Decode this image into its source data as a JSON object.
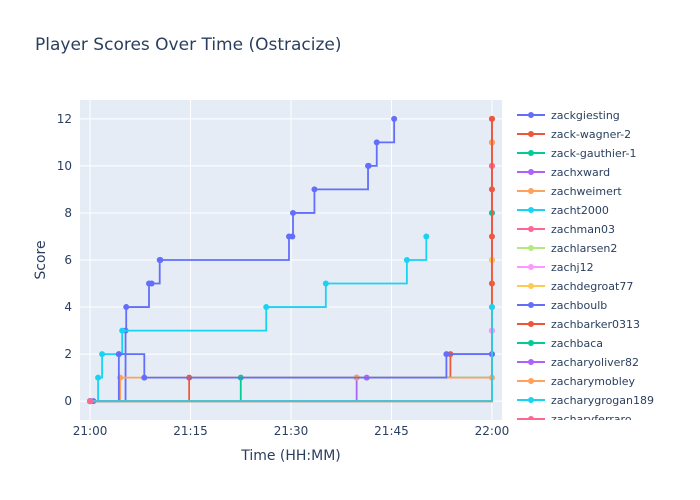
{
  "chart_data": {
    "type": "line",
    "line_shape": "step",
    "title": "Player Scores Over Time (Ostracize)",
    "xlabel": "Time (HH:MM)",
    "ylabel": "Score",
    "x_ticks": [
      "21:00",
      "21:15",
      "21:30",
      "21:45",
      "22:00"
    ],
    "x_tick_minutes": [
      0,
      15,
      30,
      45,
      60
    ],
    "xlim_minutes": [
      -1.5,
      61.5
    ],
    "ylim": [
      -0.8,
      12.8
    ],
    "y_ticks": [
      0,
      2,
      4,
      6,
      8,
      10,
      12
    ],
    "grid": true,
    "legend_position": "right",
    "series": [
      {
        "name": "zackgiesting",
        "color": "#636efa",
        "x": [
          0,
          0.5,
          5.3,
          5.4,
          8.8,
          9.2,
          10.4,
          10.5,
          29.7,
          30.2,
          30.3,
          33.5,
          41.5,
          41.6,
          42.8,
          45.4
        ],
        "y": [
          0,
          0,
          3,
          4,
          5,
          5,
          6,
          6,
          7,
          7,
          8,
          9,
          10,
          10,
          11,
          12
        ]
      },
      {
        "name": "zack-wagner-2",
        "color": "#ef553b",
        "x": [
          0,
          14.8,
          53.8,
          60,
          60,
          60,
          60,
          60,
          60,
          60,
          60,
          60,
          60,
          60
        ],
        "y": [
          0,
          1,
          2,
          2,
          3,
          4,
          5,
          6,
          7,
          8,
          9,
          10,
          11,
          12
        ]
      },
      {
        "name": "zack-gauthier-1",
        "color": "#00cc96",
        "x": [
          0,
          22.5,
          60
        ],
        "y": [
          0,
          1,
          8
        ]
      },
      {
        "name": "zachxward",
        "color": "#ab63fa",
        "x": [
          0,
          39.8,
          41.3
        ],
        "y": [
          0,
          1,
          1
        ]
      },
      {
        "name": "zachweimert",
        "color": "#ffa15a",
        "x": [
          0,
          4.5,
          39.8,
          60
        ],
        "y": [
          0,
          1,
          1,
          11
        ]
      },
      {
        "name": "zacht2000",
        "color": "#19d3f3",
        "x": [
          0,
          1.2,
          1.8,
          4.3,
          4.8,
          26.3,
          35.2,
          47.3,
          50.2
        ],
        "y": [
          0,
          1,
          2,
          2,
          3,
          4,
          5,
          6,
          7
        ]
      },
      {
        "name": "zachman03",
        "color": "#ff6692",
        "x": [
          0,
          60
        ],
        "y": [
          0,
          10
        ]
      },
      {
        "name": "zachlarsen2",
        "color": "#b6e880",
        "x": [
          0
        ],
        "y": [
          0
        ]
      },
      {
        "name": "zachj12",
        "color": "#ff97ff",
        "x": [
          0,
          60
        ],
        "y": [
          0,
          3
        ]
      },
      {
        "name": "zachdegroat77",
        "color": "#fecb52",
        "x": [
          0,
          60
        ],
        "y": [
          0,
          6
        ]
      },
      {
        "name": "zachboulb",
        "color": "#636efa",
        "x": [
          0,
          4.3,
          8.1,
          53.2,
          60
        ],
        "y": [
          0,
          2,
          1,
          2,
          2
        ]
      },
      {
        "name": "zachbarker0313",
        "color": "#ef553b",
        "x": [
          0,
          60
        ],
        "y": [
          0,
          12
        ]
      },
      {
        "name": "zachbaca",
        "color": "#00cc96",
        "x": [
          0
        ],
        "y": [
          0
        ]
      },
      {
        "name": "zacharyoliver82",
        "color": "#ab63fa",
        "x": [
          0
        ],
        "y": [
          0
        ]
      },
      {
        "name": "zacharymobley",
        "color": "#ffa15a",
        "x": [
          0,
          60
        ],
        "y": [
          0,
          1
        ]
      },
      {
        "name": "zacharygrogan189",
        "color": "#19d3f3",
        "x": [
          0,
          60
        ],
        "y": [
          0,
          4
        ]
      },
      {
        "name": "zacharyferraro",
        "color": "#ff6692",
        "x": [
          0
        ],
        "y": [
          0
        ]
      }
    ]
  }
}
